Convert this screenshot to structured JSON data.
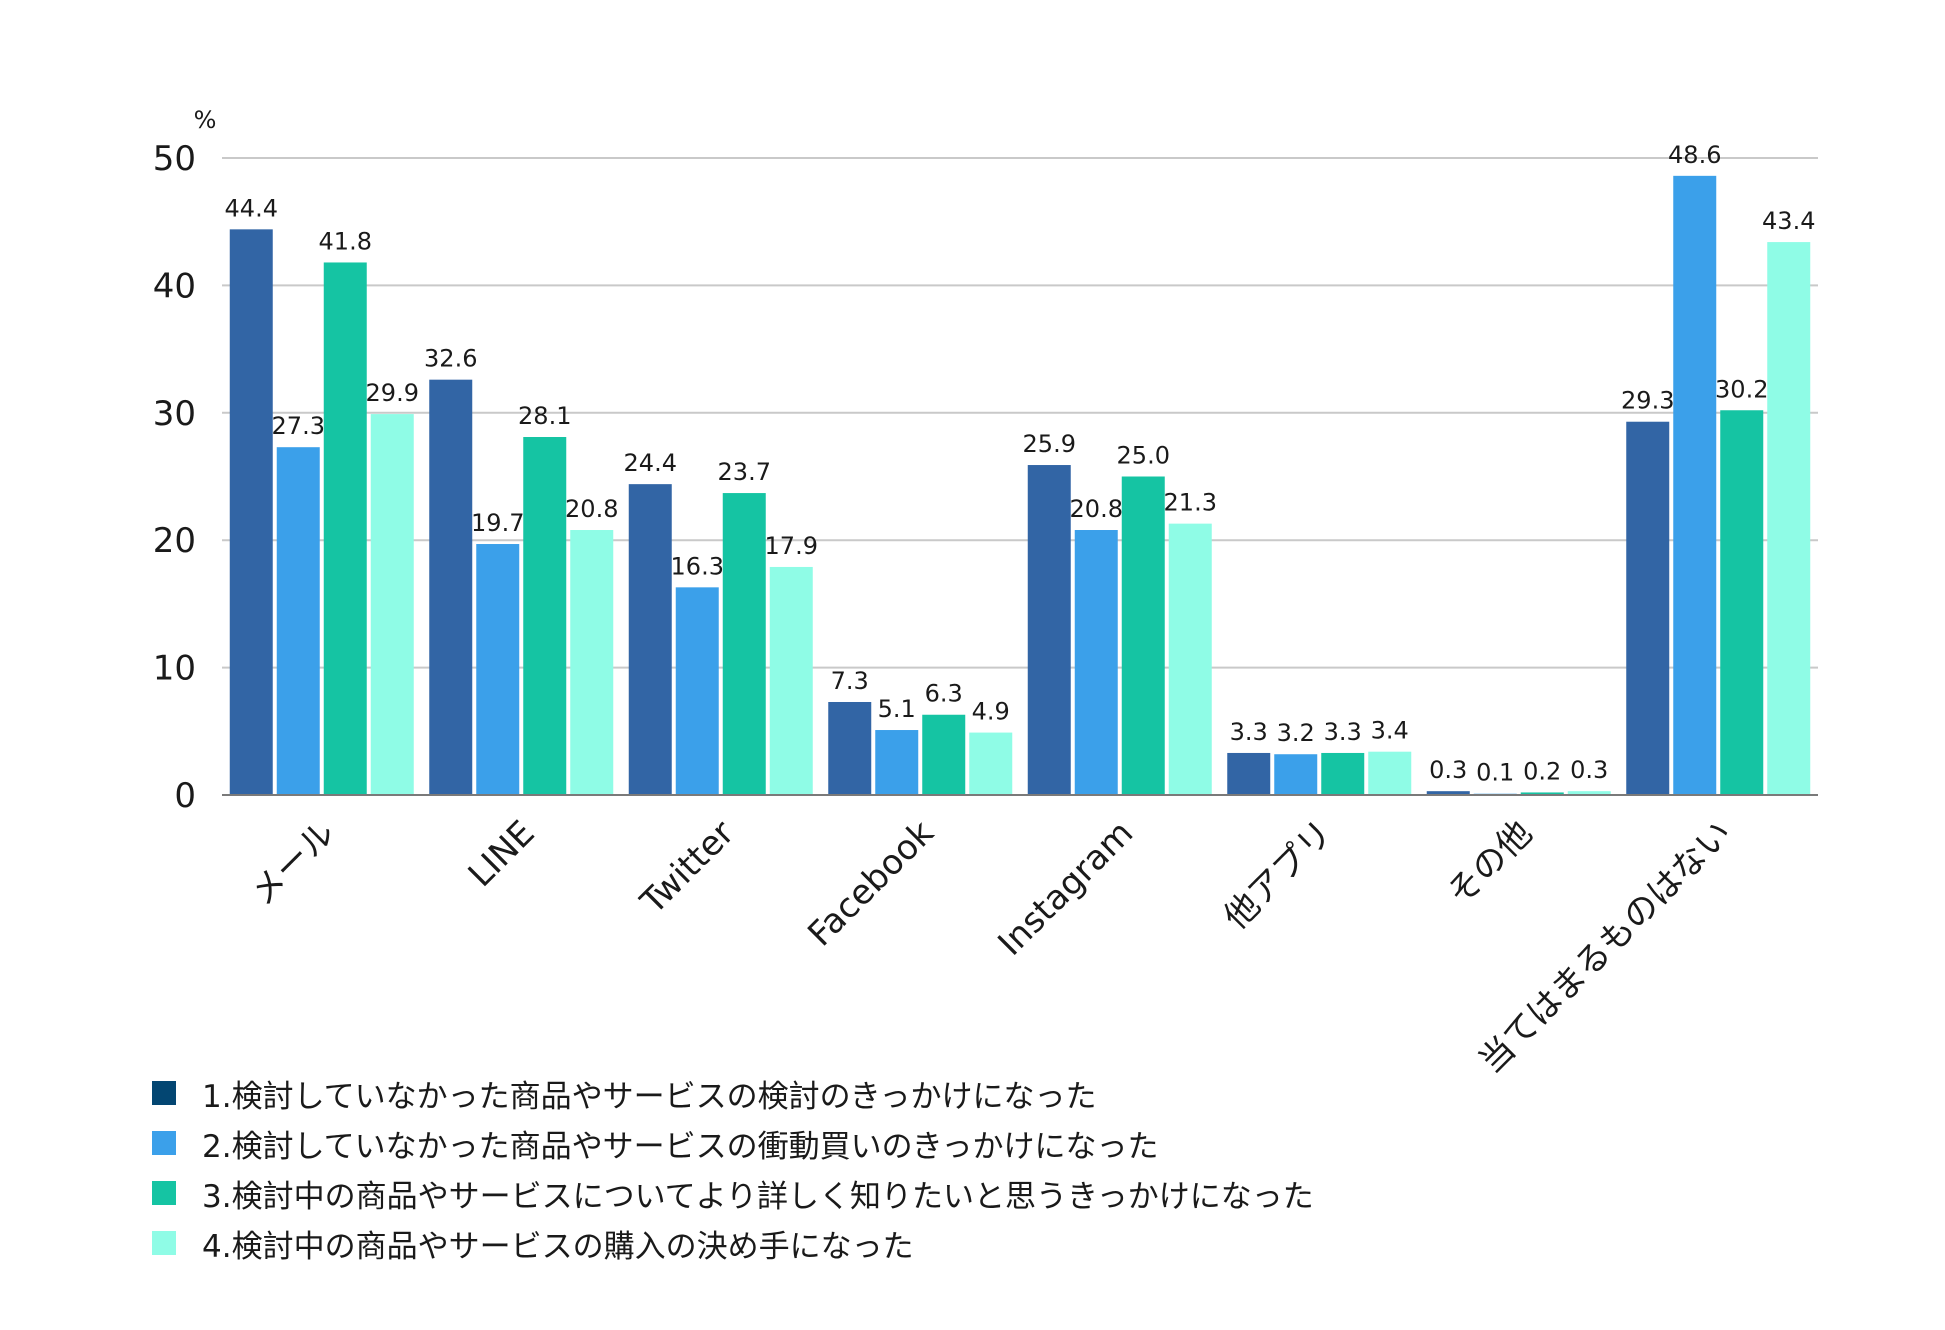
{
  "chart_data": {
    "type": "bar",
    "unit_label": "%",
    "ylim": [
      0,
      50
    ],
    "yticks": [
      0,
      10,
      20,
      30,
      40,
      50
    ],
    "grid": true,
    "categories": [
      "メール",
      "LINE",
      "Twitter",
      "Facebook",
      "Instagram",
      "他アプリ",
      "その他",
      "当てはまるものはない"
    ],
    "series": [
      {
        "name": "1.検討していなかった商品やサービスの検討のきっかけになった",
        "color": "#3265a5",
        "values": [
          44.4,
          32.6,
          24.4,
          7.3,
          25.9,
          3.3,
          0.3,
          29.3
        ]
      },
      {
        "name": "2.検討していなかった商品やサービスの衝動買いのきっかけになった",
        "color": "#3ba0ea",
        "values": [
          27.3,
          19.7,
          16.3,
          5.1,
          20.8,
          3.2,
          0.1,
          48.6
        ]
      },
      {
        "name": "3.検討中の商品やサービスについてより詳しく知りたいと思うきっかけになった",
        "color": "#15c4a3",
        "values": [
          41.8,
          28.1,
          23.7,
          6.3,
          25.0,
          3.3,
          0.2,
          30.2
        ]
      },
      {
        "name": "4.検討中の商品やサービスの購入の決め手になった",
        "color": "#8ffce6",
        "values": [
          29.9,
          20.8,
          17.9,
          4.9,
          21.3,
          3.4,
          0.3,
          43.4
        ]
      }
    ],
    "legend_swatch_colors": [
      "#034672",
      "#3ba0ea",
      "#15c4a3",
      "#8ffce6"
    ],
    "legend_position": "bottom-left"
  }
}
